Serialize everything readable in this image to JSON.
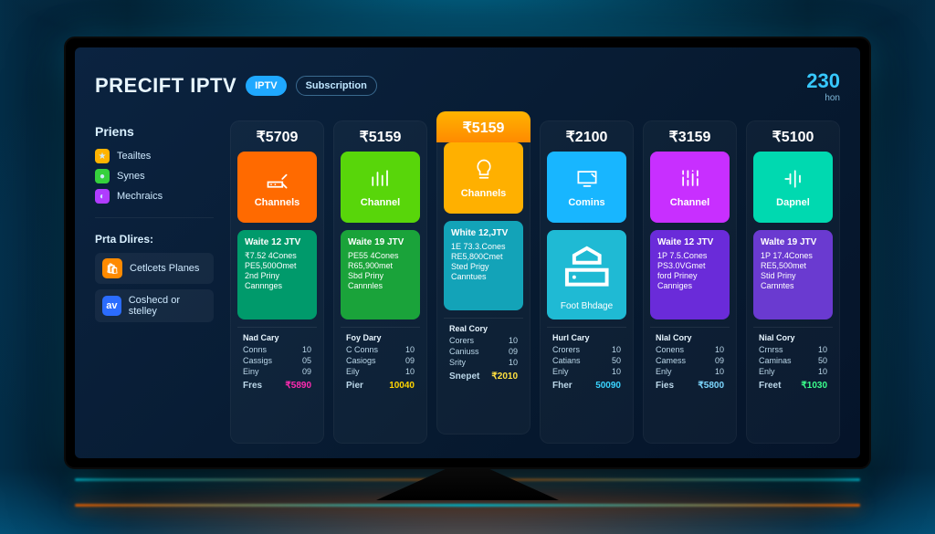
{
  "header": {
    "title": "PRECIFT IPTV",
    "pill_primary": "IPTV",
    "pill_secondary": "Subscription",
    "balance_value": "230",
    "balance_unit": "hon"
  },
  "sidebar": {
    "heading_prices": "Priens",
    "items_top": [
      {
        "label": "Teailtes",
        "dot_bg": "#ffb300",
        "glyph": "★"
      },
      {
        "label": "Synes",
        "dot_bg": "#36d13d",
        "glyph": "●"
      },
      {
        "label": "Mechraics",
        "dot_bg": "#b03cff",
        "glyph": "◐"
      }
    ],
    "heading_dirs": "Prta Dlires:",
    "tile1": {
      "label": "Cetlcets Planes",
      "tile_bg": "#ff8a00",
      "glyph": "🛍"
    },
    "tile2": {
      "label": "Coshecd or stelley",
      "tile_bg": "#2b6cff",
      "glyph": "av"
    }
  },
  "plans": [
    {
      "price": "₹5709",
      "tile_bg": "#ff6a00",
      "tile_label": "Channels",
      "icon": "router",
      "mid_bg": "#009a6b",
      "mid_title": "Waite 12 JTV",
      "mid_lines": [
        "₹7.52 4Cones",
        "PE5,500Omet",
        "2nd Priny",
        "Cannnges"
      ],
      "foot_title": "Nad Cary",
      "foot_rows": [
        [
          "Conns",
          "10"
        ],
        [
          "Cassigs",
          "05"
        ],
        [
          "Einy",
          "09"
        ]
      ],
      "final_label": "Fres",
      "final_value": "₹5890",
      "final_color": "#ff2bb2"
    },
    {
      "price": "₹5159",
      "tile_bg": "#58d60a",
      "tile_label": "Channel",
      "icon": "bars",
      "mid_bg": "#1aa33a",
      "mid_title": "Waite 19 JTV",
      "mid_lines": [
        "PE55 4Cones",
        "R65,900met",
        "Sbd Priny",
        "Cannnles"
      ],
      "foot_title": "Foy Dary",
      "foot_rows": [
        [
          "C Conns",
          "10"
        ],
        [
          "Casiogs",
          "09"
        ],
        [
          "Eily",
          "10"
        ]
      ],
      "final_label": "Pier",
      "final_value": "10040",
      "final_color": "#ffd400"
    },
    {
      "featured": true,
      "price": "₹5159",
      "tile_bg": "#ffb000",
      "tile_label": "Channels",
      "icon": "bulb",
      "mid_bg": "#13a3b8",
      "mid_title": "White 12,JTV",
      "mid_lines": [
        "1E 73.3.Cones",
        "RE5,800Cmet",
        "Sted Prigy",
        "Canntues"
      ],
      "foot_title": "Real Cory",
      "foot_rows": [
        [
          "Corers",
          "10"
        ],
        [
          "Caniuss",
          "09"
        ],
        [
          "Srity",
          "10"
        ]
      ],
      "final_label": "Snepet",
      "final_value": "₹2010",
      "final_color": "#ffe040"
    },
    {
      "price": "₹2100",
      "tile_bg": "#18b6ff",
      "tile_label": "Comins",
      "icon": "monitor",
      "mid_bg": "#1fbad4",
      "mid_is_icon": true,
      "mid_icon": "storage",
      "mid_label": "Foot Bhdage",
      "foot_title": "Hurl Cary",
      "foot_rows": [
        [
          "Crorers",
          "10"
        ],
        [
          "Catians",
          "50"
        ],
        [
          "Enly",
          "10"
        ]
      ],
      "final_label": "Fher",
      "final_value": "50090",
      "final_color": "#3ad3ff"
    },
    {
      "price": "₹3159",
      "tile_bg": "#c82fff",
      "tile_label": "Channel",
      "icon": "equalizer",
      "mid_bg": "#6a2bd9",
      "mid_title": "Waite 12 JTV",
      "mid_lines": [
        "1P 7.5.Cones",
        "PS3.0VGmet",
        "ford Priney",
        "Canniges"
      ],
      "foot_title": "Nlal Cory",
      "foot_rows": [
        [
          "Conens",
          "10"
        ],
        [
          "Camess",
          "09"
        ],
        [
          "Enly",
          "10"
        ]
      ],
      "final_label": "Fies",
      "final_value": "₹5800",
      "final_color": "#7dd8ff"
    },
    {
      "price": "₹5100",
      "tile_bg": "#00d9b0",
      "tile_label": "Dapnel",
      "icon": "sound",
      "mid_bg": "#6a3ad0",
      "mid_title": "Walte 19 JTV",
      "mid_lines": [
        "1P 17.4Cones",
        "RE5,500met",
        "Stid Priny",
        "Carnntes"
      ],
      "foot_title": "Nial Cory",
      "foot_rows": [
        [
          "Crnrss",
          "10"
        ],
        [
          "Caminas",
          "50"
        ],
        [
          "Enly",
          "10"
        ]
      ],
      "final_label": "Freet",
      "final_value": "₹1030",
      "final_color": "#3bff8c"
    }
  ]
}
